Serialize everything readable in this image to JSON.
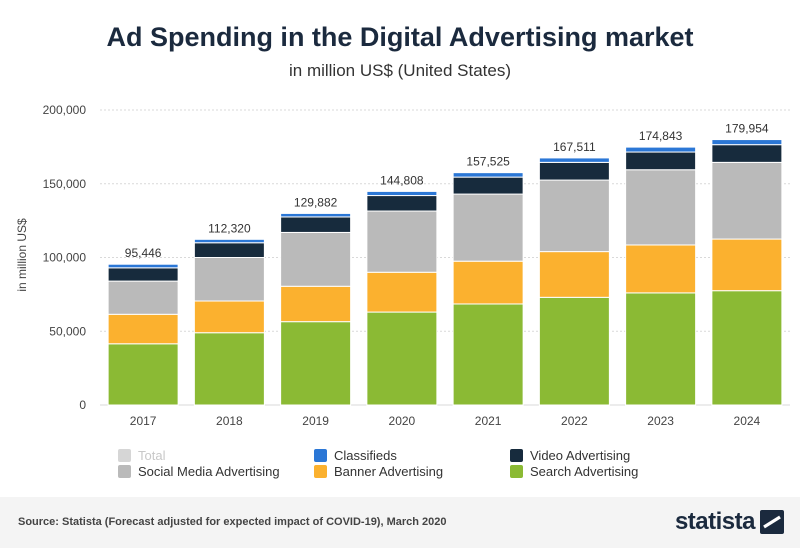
{
  "header": {
    "title": "Ad Spending in the Digital Advertising market",
    "subtitle": "in million US$ (United States)"
  },
  "chart_data": {
    "type": "bar",
    "stacked": true,
    "title": "Ad Spending in the Digital Advertising market",
    "subtitle": "in million US$ (United States)",
    "xlabel": "",
    "ylabel": "in million US$",
    "ylim": [
      0,
      200000
    ],
    "yticks": [
      0,
      50000,
      100000,
      150000,
      200000
    ],
    "ytick_labels": [
      "0",
      "50,000",
      "100,000",
      "150,000",
      "200,000"
    ],
    "grid": true,
    "legend_position": "bottom",
    "categories": [
      "2017",
      "2018",
      "2019",
      "2020",
      "2021",
      "2022",
      "2023",
      "2024"
    ],
    "series": [
      {
        "name": "Search Advertising",
        "color": "#8bba34",
        "values": [
          41500,
          49000,
          56500,
          63000,
          68500,
          73000,
          76000,
          77500
        ]
      },
      {
        "name": "Banner Advertising",
        "color": "#fbb12f",
        "values": [
          20000,
          21500,
          24000,
          27000,
          29000,
          31000,
          32500,
          35000
        ]
      },
      {
        "name": "Social Media Advertising",
        "color": "#bababa",
        "values": [
          22500,
          29500,
          36500,
          41500,
          45500,
          48500,
          51000,
          52000
        ]
      },
      {
        "name": "Video Advertising",
        "color": "#172b3d",
        "values": [
          9000,
          10000,
          10500,
          10500,
          11500,
          12000,
          12000,
          12000
        ]
      },
      {
        "name": "Classifieds",
        "color": "#2b77d6",
        "values": [
          2446,
          2320,
          2382,
          2808,
          3025,
          3011,
          3343,
          3454
        ]
      }
    ],
    "totals": [
      95446,
      112320,
      129882,
      144808,
      157525,
      167511,
      174843,
      179954
    ],
    "total_labels": [
      "95,446",
      "112,320",
      "129,882",
      "144,808",
      "157,525",
      "167,511",
      "174,843",
      "179,954"
    ]
  },
  "legend": [
    {
      "label": "Total",
      "color": "#d6d6d6",
      "muted": true
    },
    {
      "label": "Classifieds",
      "color": "#2b77d6",
      "muted": false
    },
    {
      "label": "Video Advertising",
      "color": "#172b3d",
      "muted": false
    },
    {
      "label": "Social Media Advertising",
      "color": "#bababa",
      "muted": false
    },
    {
      "label": "Banner Advertising",
      "color": "#fbb12f",
      "muted": false
    },
    {
      "label": "Search Advertising",
      "color": "#8bba34",
      "muted": false
    }
  ],
  "footer": {
    "source": "Source: Statista (Forecast adjusted for expected impact of COVID-19), March 2020",
    "logo_text": "statista"
  }
}
